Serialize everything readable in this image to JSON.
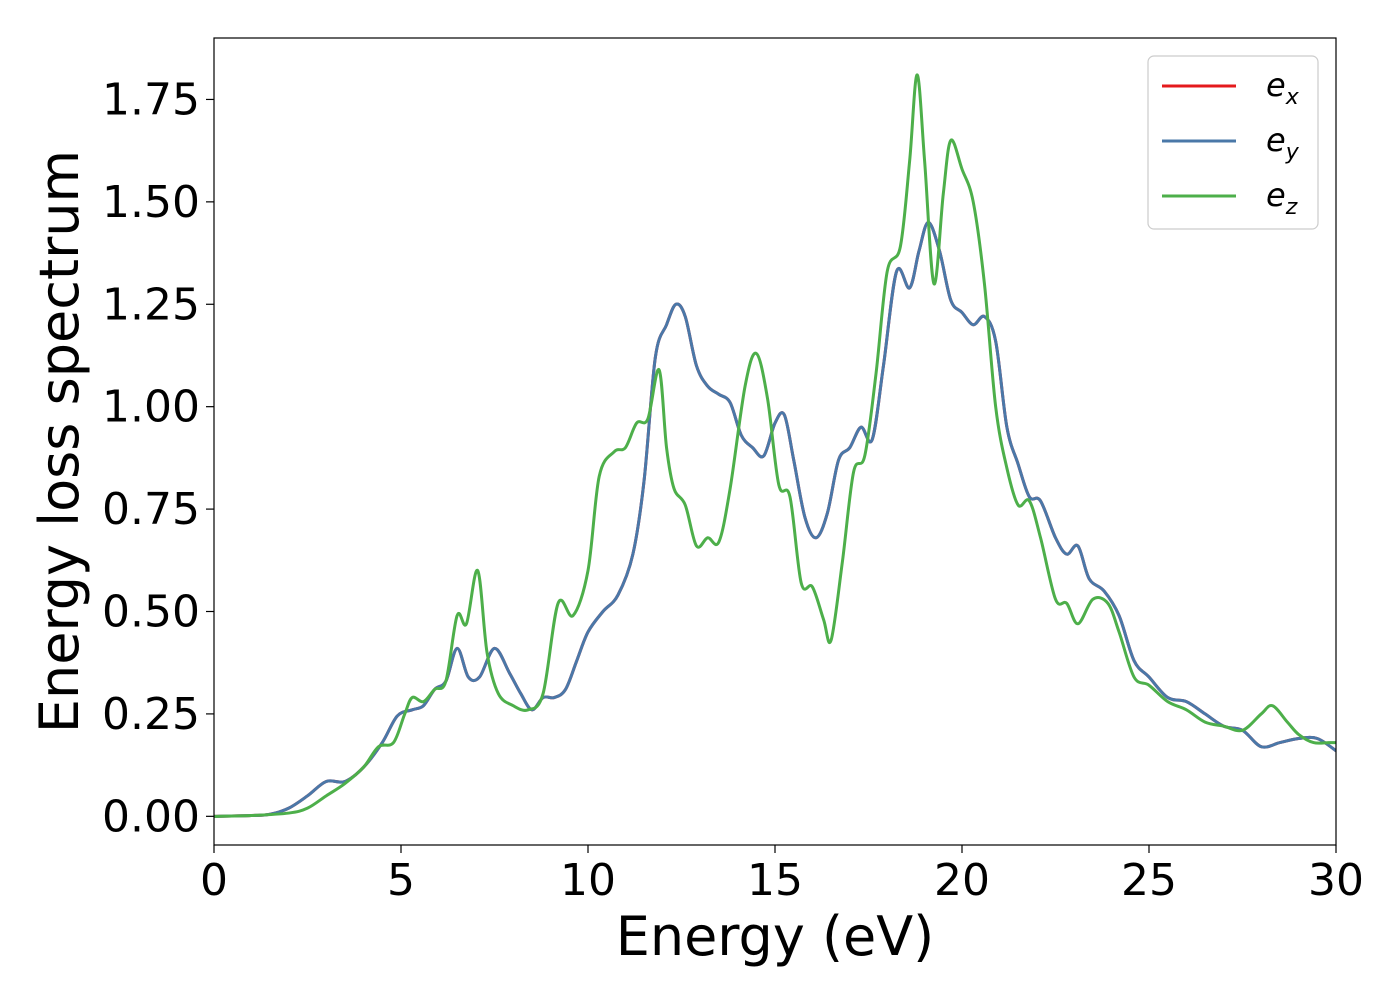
{
  "chart_data": {
    "type": "line",
    "title": "",
    "xlabel": "Energy (eV)",
    "ylabel": "Energy loss spectrum",
    "xlim": [
      0,
      30
    ],
    "ylim": [
      -0.07,
      1.9
    ],
    "xticks": [
      0,
      5,
      10,
      15,
      20,
      25,
      30
    ],
    "xtick_labels": [
      "0",
      "5",
      "10",
      "15",
      "20",
      "25",
      "30"
    ],
    "yticks": [
      0.0,
      0.25,
      0.5,
      0.75,
      1.0,
      1.25,
      1.5,
      1.75
    ],
    "ytick_labels": [
      "0.00",
      "0.25",
      "0.50",
      "0.75",
      "1.00",
      "1.25",
      "1.50",
      "1.75"
    ],
    "grid": false,
    "legend_position": "top-right",
    "series": [
      {
        "name": "ex",
        "legend_base": "e",
        "legend_sub": "x",
        "color": "#e41a1c",
        "x": [
          0,
          1,
          1.5,
          2,
          2.5,
          3,
          3.5,
          4,
          4.5,
          4.9,
          5.3,
          5.6,
          5.9,
          6.2,
          6.5,
          6.8,
          7.1,
          7.5,
          7.9,
          8.2,
          8.5,
          8.8,
          9.1,
          9.4,
          9.7,
          10,
          10.4,
          10.8,
          11.2,
          11.5,
          11.8,
          12.1,
          12.35,
          12.6,
          12.9,
          13.2,
          13.5,
          13.8,
          14.1,
          14.4,
          14.7,
          15,
          15.25,
          15.5,
          15.8,
          16.1,
          16.4,
          16.7,
          17,
          17.3,
          17.6,
          17.9,
          18.25,
          18.6,
          18.85,
          19.1,
          19.4,
          19.7,
          20.0,
          20.3,
          20.6,
          20.9,
          21.2,
          21.5,
          21.8,
          22.1,
          22.5,
          22.8,
          23.1,
          23.4,
          23.8,
          24.2,
          24.6,
          25,
          25.5,
          26,
          26.5,
          27,
          27.5,
          28,
          28.5,
          29,
          29.5,
          30
        ],
        "y": [
          0.0,
          0.002,
          0.005,
          0.02,
          0.05,
          0.085,
          0.085,
          0.12,
          0.18,
          0.245,
          0.26,
          0.27,
          0.31,
          0.33,
          0.41,
          0.34,
          0.34,
          0.41,
          0.35,
          0.3,
          0.26,
          0.29,
          0.29,
          0.31,
          0.38,
          0.45,
          0.5,
          0.54,
          0.64,
          0.82,
          1.12,
          1.2,
          1.25,
          1.22,
          1.1,
          1.05,
          1.03,
          1.01,
          0.93,
          0.9,
          0.88,
          0.96,
          0.98,
          0.87,
          0.73,
          0.68,
          0.74,
          0.87,
          0.9,
          0.95,
          0.92,
          1.1,
          1.33,
          1.29,
          1.38,
          1.45,
          1.38,
          1.26,
          1.23,
          1.2,
          1.22,
          1.16,
          0.95,
          0.86,
          0.78,
          0.77,
          0.68,
          0.64,
          0.66,
          0.58,
          0.55,
          0.49,
          0.38,
          0.34,
          0.29,
          0.28,
          0.25,
          0.22,
          0.21,
          0.17,
          0.18,
          0.19,
          0.19,
          0.16
        ]
      },
      {
        "name": "ey",
        "legend_base": "e",
        "legend_sub": "y",
        "color": "#4a78a8",
        "x": [
          0,
          1,
          1.5,
          2,
          2.5,
          3,
          3.5,
          4,
          4.5,
          4.9,
          5.3,
          5.6,
          5.9,
          6.2,
          6.5,
          6.8,
          7.1,
          7.5,
          7.9,
          8.2,
          8.5,
          8.8,
          9.1,
          9.4,
          9.7,
          10,
          10.4,
          10.8,
          11.2,
          11.5,
          11.8,
          12.1,
          12.35,
          12.6,
          12.9,
          13.2,
          13.5,
          13.8,
          14.1,
          14.4,
          14.7,
          15,
          15.25,
          15.5,
          15.8,
          16.1,
          16.4,
          16.7,
          17,
          17.3,
          17.6,
          17.9,
          18.25,
          18.6,
          18.85,
          19.1,
          19.4,
          19.7,
          20.0,
          20.3,
          20.6,
          20.9,
          21.2,
          21.5,
          21.8,
          22.1,
          22.5,
          22.8,
          23.1,
          23.4,
          23.8,
          24.2,
          24.6,
          25,
          25.5,
          26,
          26.5,
          27,
          27.5,
          28,
          28.5,
          29,
          29.5,
          30
        ],
        "y": [
          0.0,
          0.002,
          0.005,
          0.02,
          0.05,
          0.085,
          0.085,
          0.12,
          0.18,
          0.245,
          0.26,
          0.27,
          0.31,
          0.33,
          0.41,
          0.34,
          0.34,
          0.41,
          0.35,
          0.3,
          0.26,
          0.29,
          0.29,
          0.31,
          0.38,
          0.45,
          0.5,
          0.54,
          0.64,
          0.82,
          1.12,
          1.2,
          1.25,
          1.22,
          1.1,
          1.05,
          1.03,
          1.01,
          0.93,
          0.9,
          0.88,
          0.96,
          0.98,
          0.87,
          0.73,
          0.68,
          0.74,
          0.87,
          0.9,
          0.95,
          0.92,
          1.1,
          1.33,
          1.29,
          1.38,
          1.45,
          1.38,
          1.26,
          1.23,
          1.2,
          1.22,
          1.16,
          0.95,
          0.86,
          0.78,
          0.77,
          0.68,
          0.64,
          0.66,
          0.58,
          0.55,
          0.49,
          0.38,
          0.34,
          0.29,
          0.28,
          0.25,
          0.22,
          0.21,
          0.17,
          0.18,
          0.19,
          0.19,
          0.16
        ]
      },
      {
        "name": "ez",
        "legend_base": "e",
        "legend_sub": "z",
        "color": "#4daf4a",
        "x": [
          0,
          1,
          2,
          2.5,
          3,
          3.5,
          4,
          4.4,
          4.8,
          5.1,
          5.3,
          5.6,
          5.9,
          6.2,
          6.5,
          6.75,
          7.05,
          7.3,
          7.6,
          8,
          8.4,
          8.8,
          9.2,
          9.6,
          10,
          10.3,
          10.7,
          11,
          11.3,
          11.6,
          11.9,
          12.1,
          12.3,
          12.6,
          12.9,
          13.2,
          13.5,
          13.8,
          14.2,
          14.5,
          14.8,
          15.1,
          15.4,
          15.7,
          16.0,
          16.3,
          16.5,
          16.8,
          17.1,
          17.4,
          17.7,
          18.0,
          18.35,
          18.6,
          18.8,
          19.0,
          19.25,
          19.5,
          19.7,
          20.0,
          20.3,
          20.6,
          20.9,
          21.2,
          21.5,
          21.8,
          22.1,
          22.5,
          22.8,
          23.1,
          23.5,
          23.9,
          24.2,
          24.6,
          25,
          25.5,
          26,
          26.5,
          27,
          27.5,
          28,
          28.3,
          28.7,
          29,
          29.4,
          29.8,
          30
        ],
        "y": [
          0.0,
          0.002,
          0.008,
          0.02,
          0.05,
          0.08,
          0.12,
          0.17,
          0.18,
          0.25,
          0.29,
          0.28,
          0.31,
          0.33,
          0.49,
          0.47,
          0.6,
          0.4,
          0.3,
          0.27,
          0.26,
          0.3,
          0.52,
          0.49,
          0.6,
          0.83,
          0.89,
          0.9,
          0.96,
          0.97,
          1.09,
          0.9,
          0.8,
          0.76,
          0.66,
          0.68,
          0.67,
          0.8,
          1.05,
          1.13,
          1.02,
          0.81,
          0.78,
          0.57,
          0.56,
          0.48,
          0.43,
          0.62,
          0.84,
          0.88,
          1.08,
          1.33,
          1.39,
          1.6,
          1.81,
          1.6,
          1.3,
          1.52,
          1.65,
          1.58,
          1.5,
          1.3,
          1.0,
          0.85,
          0.76,
          0.77,
          0.68,
          0.53,
          0.52,
          0.47,
          0.53,
          0.52,
          0.45,
          0.34,
          0.32,
          0.28,
          0.26,
          0.23,
          0.22,
          0.21,
          0.25,
          0.27,
          0.23,
          0.2,
          0.18,
          0.18,
          0.18
        ]
      }
    ]
  }
}
